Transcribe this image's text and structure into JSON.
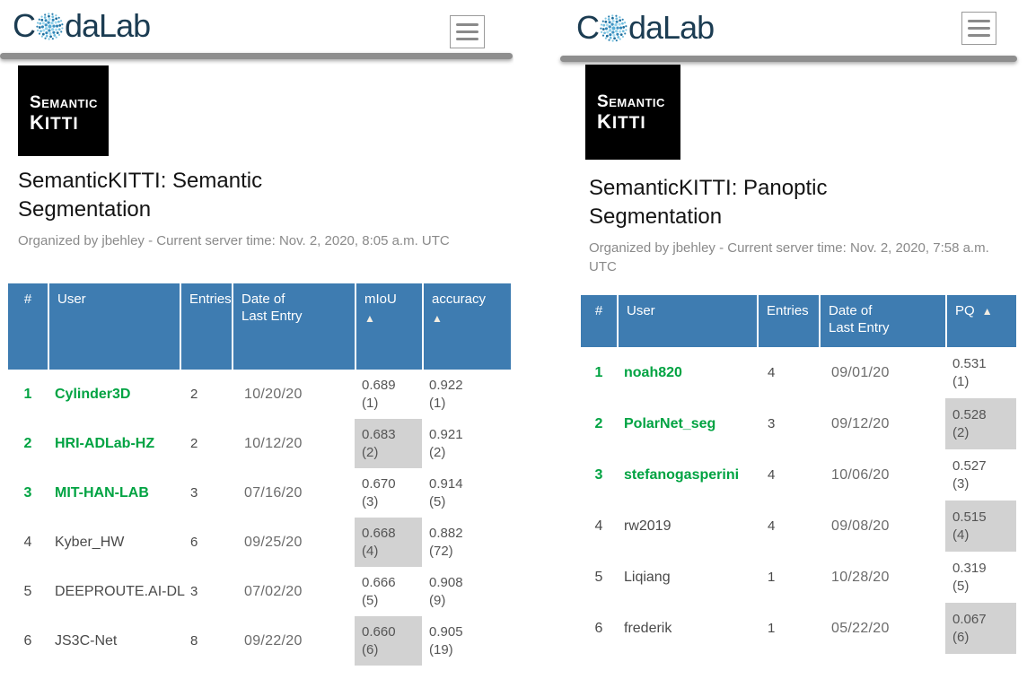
{
  "brand": {
    "prefix": "C",
    "suffix": "daLab"
  },
  "colors": {
    "header_blue": "#3E7CB1",
    "rank_green": "#00A342",
    "shaded_cell": "#D2D2D2",
    "divider_gray": "#8E8E8E",
    "brand_navy": "#1B3C52"
  },
  "panels": [
    {
      "id": "semantic-segmentation",
      "logo": {
        "line1": "SEMANTIC",
        "line2": "KITTI"
      },
      "title": "SemanticKITTI: Semantic Segmentation",
      "subtitle": "Organized by jbehley - Current server time: Nov. 2, 2020, 8:05 a.m. UTC",
      "table": {
        "columns": [
          {
            "key": "rank",
            "label": "#"
          },
          {
            "key": "user",
            "label": "User"
          },
          {
            "key": "entries",
            "label": "Entries"
          },
          {
            "key": "date",
            "label": "Date of",
            "label2": "Last Entry"
          },
          {
            "key": "miou",
            "label": "mIoU",
            "sort": "▲",
            "metric": true
          },
          {
            "key": "accuracy",
            "label": "accuracy",
            "sort": "▲",
            "metric": true
          }
        ],
        "rows": [
          {
            "rank": "1",
            "user": "Cylinder3D",
            "top3": true,
            "entries": "2",
            "date": "10/20/20",
            "metrics": {
              "miou": {
                "value": "0.689",
                "place": "(1)",
                "shaded": false
              },
              "accuracy": {
                "value": "0.922",
                "place": "(1)",
                "shaded": false
              }
            }
          },
          {
            "rank": "2",
            "user": "HRI-ADLab-HZ",
            "top3": true,
            "entries": "2",
            "date": "10/12/20",
            "metrics": {
              "miou": {
                "value": "0.683",
                "place": "(2)",
                "shaded": true
              },
              "accuracy": {
                "value": "0.921",
                "place": "(2)",
                "shaded": false
              }
            }
          },
          {
            "rank": "3",
            "user": "MIT-HAN-LAB",
            "top3": true,
            "entries": "3",
            "date": "07/16/20",
            "metrics": {
              "miou": {
                "value": "0.670",
                "place": "(3)",
                "shaded": false
              },
              "accuracy": {
                "value": "0.914",
                "place": "(5)",
                "shaded": false
              }
            }
          },
          {
            "rank": "4",
            "user": "Kyber_HW",
            "top3": false,
            "entries": "6",
            "date": "09/25/20",
            "metrics": {
              "miou": {
                "value": "0.668",
                "place": "(4)",
                "shaded": true
              },
              "accuracy": {
                "value": "0.882",
                "place": "(72)",
                "shaded": false
              }
            }
          },
          {
            "rank": "5",
            "user": "DEEPROUTE.AI-DL",
            "top3": false,
            "entries": "3",
            "date": "07/02/20",
            "metrics": {
              "miou": {
                "value": "0.666",
                "place": "(5)",
                "shaded": false
              },
              "accuracy": {
                "value": "0.908",
                "place": "(9)",
                "shaded": false
              }
            }
          },
          {
            "rank": "6",
            "user": "JS3C-Net",
            "top3": false,
            "entries": "8",
            "date": "09/22/20",
            "metrics": {
              "miou": {
                "value": "0.660",
                "place": "(6)",
                "shaded": true
              },
              "accuracy": {
                "value": "0.905",
                "place": "(19)",
                "shaded": false
              }
            }
          }
        ]
      }
    },
    {
      "id": "panoptic-segmentation",
      "logo": {
        "line1": "SEMANTIC",
        "line2": "KITTI"
      },
      "title": "SemanticKITTI: Panoptic Segmentation",
      "subtitle": "Organized by jbehley - Current server time: Nov. 2, 2020, 7:58 a.m. UTC",
      "table": {
        "columns": [
          {
            "key": "rank",
            "label": "#"
          },
          {
            "key": "user",
            "label": "User"
          },
          {
            "key": "entries",
            "label": "Entries"
          },
          {
            "key": "date",
            "label": "Date of",
            "label2": "Last Entry"
          },
          {
            "key": "pq",
            "label": "PQ",
            "sort": "▲",
            "sort_inline": true,
            "metric": true
          }
        ],
        "rows": [
          {
            "rank": "1",
            "user": "noah820",
            "top3": true,
            "entries": "4",
            "date": "09/01/20",
            "metrics": {
              "pq": {
                "value": "0.531",
                "place": "(1)",
                "shaded": false
              }
            }
          },
          {
            "rank": "2",
            "user": "PolarNet_seg",
            "top3": true,
            "entries": "3",
            "date": "09/12/20",
            "metrics": {
              "pq": {
                "value": "0.528",
                "place": "(2)",
                "shaded": true
              }
            }
          },
          {
            "rank": "3",
            "user": "stefanogasperini",
            "top3": true,
            "entries": "4",
            "date": "10/06/20",
            "metrics": {
              "pq": {
                "value": "0.527",
                "place": "(3)",
                "shaded": false
              }
            }
          },
          {
            "rank": "4",
            "user": "rw2019",
            "top3": false,
            "entries": "4",
            "date": "09/08/20",
            "metrics": {
              "pq": {
                "value": "0.515",
                "place": "(4)",
                "shaded": true
              }
            }
          },
          {
            "rank": "5",
            "user": "Liqiang",
            "top3": false,
            "entries": "1",
            "date": "10/28/20",
            "metrics": {
              "pq": {
                "value": "0.319",
                "place": "(5)",
                "shaded": false
              }
            }
          },
          {
            "rank": "6",
            "user": "frederik",
            "top3": false,
            "entries": "1",
            "date": "05/22/20",
            "metrics": {
              "pq": {
                "value": "0.067",
                "place": "(6)",
                "shaded": true
              }
            }
          }
        ]
      }
    }
  ]
}
